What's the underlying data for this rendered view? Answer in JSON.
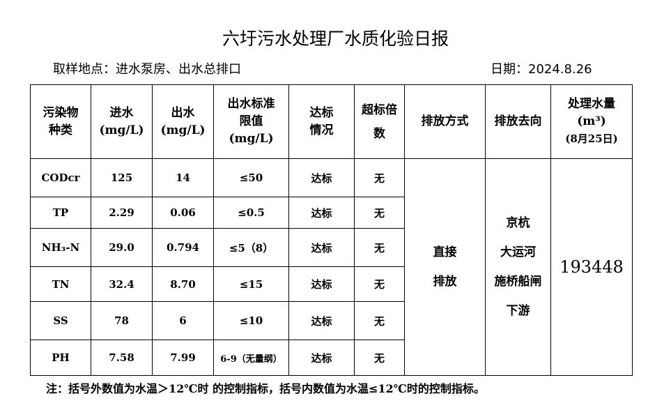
{
  "title": "六圩污水处理厂水质化验日报",
  "location": "取样地点：进水泵房、出水总排口",
  "date": "日期：2024.8.26",
  "headers": {
    "pollutant": [
      "污染物",
      "种类"
    ],
    "influent": [
      "进水",
      "(mg/L)"
    ],
    "effluent": [
      "出水",
      "(mg/L)"
    ],
    "limit": [
      "出水标准",
      "限值",
      "(mg/L)"
    ],
    "compliance": [
      "达标",
      "情况"
    ],
    "exceed": [
      "超标倍",
      "数"
    ],
    "discharge_method": "排放方式",
    "discharge_dest": "排放去向",
    "volume": [
      "处理水量",
      "(m³)",
      "(8月25日)"
    ]
  },
  "rows": [
    {
      "name": "CODcr",
      "in": "125",
      "out": "14",
      "limit": "≤50",
      "status": "达标",
      "exceed": "无"
    },
    {
      "name": "TP",
      "in": "2.29",
      "out": "0.06",
      "limit": "≤0.5",
      "status": "达标",
      "exceed": "无"
    },
    {
      "name": "NH₃-N",
      "in": "29.0",
      "out": "0.794",
      "limit": "≤5（8）",
      "status": "达标",
      "exceed": "无"
    },
    {
      "name": "TN",
      "in": "32.4",
      "out": "8.70",
      "limit": "≤15",
      "status": "达标",
      "exceed": "无"
    },
    {
      "name": "SS",
      "in": "78",
      "out": "6",
      "limit": "≤10",
      "status": "达标",
      "exceed": "无"
    },
    {
      "name": "PH",
      "in": "7.58",
      "out": "7.99",
      "limit": "6-9（无量纲）",
      "status": "达标",
      "exceed": "无"
    }
  ],
  "discharge_method": [
    "直接",
    "排放"
  ],
  "discharge_dest": [
    "京杭",
    "大运河",
    "施桥船闸",
    "下游"
  ],
  "volume": "193448",
  "note": "注：括号外数值为水温＞12℃时 的控制指标，括号内数值为水温≤12℃时的控制指标。"
}
